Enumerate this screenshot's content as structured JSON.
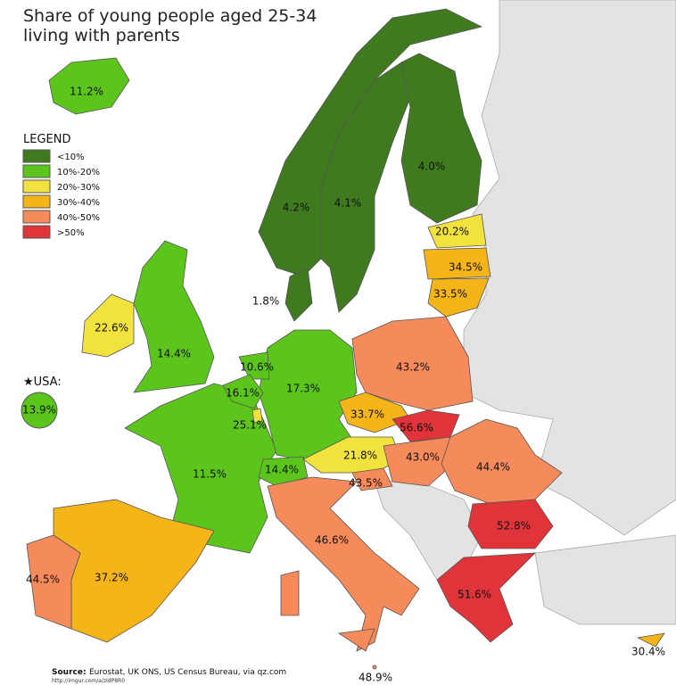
{
  "title_lines": [
    "Share of young people aged 25-34",
    "living with parents"
  ],
  "legend": {
    "title": "LEGEND",
    "items": [
      {
        "label": "<10%",
        "color": "#3f7a1f"
      },
      {
        "label": "10%-20%",
        "color": "#5cc51b"
      },
      {
        "label": "20%-30%",
        "color": "#f2e23e"
      },
      {
        "label": "30%-40%",
        "color": "#f5b418"
      },
      {
        "label": "40%-50%",
        "color": "#f58a5a"
      },
      {
        "label": ">50%",
        "color": "#e0333a"
      }
    ]
  },
  "regions": [
    {
      "label": "11.2%",
      "color": "#5cc51b"
    },
    {
      "label": "4.2%",
      "color": "#3f7a1f"
    },
    {
      "label": "4.1%",
      "color": "#3f7a1f"
    },
    {
      "label": "4.0%",
      "color": "#3f7a1f"
    },
    {
      "label": "20.2%",
      "color": "#f2e23e"
    },
    {
      "label": "34.5%",
      "color": "#f5b418"
    },
    {
      "label": "33.5%",
      "color": "#f5b418"
    },
    {
      "label": "1.8%",
      "color": "#3f7a1f"
    },
    {
      "label": "22.6%",
      "color": "#f2e23e"
    },
    {
      "label": "14.4%",
      "color": "#5cc51b"
    },
    {
      "label": "10.6%",
      "color": "#5cc51b"
    },
    {
      "label": "16.1%",
      "color": "#5cc51b"
    },
    {
      "label": "25.1%",
      "color": "#f2e23e"
    },
    {
      "label": "17.3%",
      "color": "#5cc51b"
    },
    {
      "label": "11.5%",
      "color": "#5cc51b"
    },
    {
      "label": "14.4%",
      "color": "#5cc51b"
    },
    {
      "label": "43.2%",
      "color": "#f58a5a"
    },
    {
      "label": "33.7%",
      "color": "#f5b418"
    },
    {
      "label": "56.6%",
      "color": "#e0333a"
    },
    {
      "label": "21.8%",
      "color": "#f2e23e"
    },
    {
      "label": "43.0%",
      "color": "#f58a5a"
    },
    {
      "label": "43.5%",
      "color": "#f58a5a"
    },
    {
      "label": "44.4%",
      "color": "#f58a5a"
    },
    {
      "label": "52.8%",
      "color": "#e0333a"
    },
    {
      "label": "51.6%",
      "color": "#e0333a"
    },
    {
      "label": "46.6%",
      "color": "#f58a5a"
    },
    {
      "label": "37.2%",
      "color": "#f5b418"
    },
    {
      "label": "44.5%",
      "color": "#f58a5a"
    },
    {
      "label": "30.4%",
      "color": "#f5b418"
    },
    {
      "label": "48.9%",
      "color": "#f58a5a"
    }
  ],
  "usa": {
    "title": "★USA:",
    "label": "13.9%",
    "color": "#5cc51b"
  },
  "source": {
    "label": "Source:",
    "text": "Eurostat, UK ONS, US Census Bureau, via qz.com",
    "url": "http://imgur.com/a/zIdP8R0"
  }
}
